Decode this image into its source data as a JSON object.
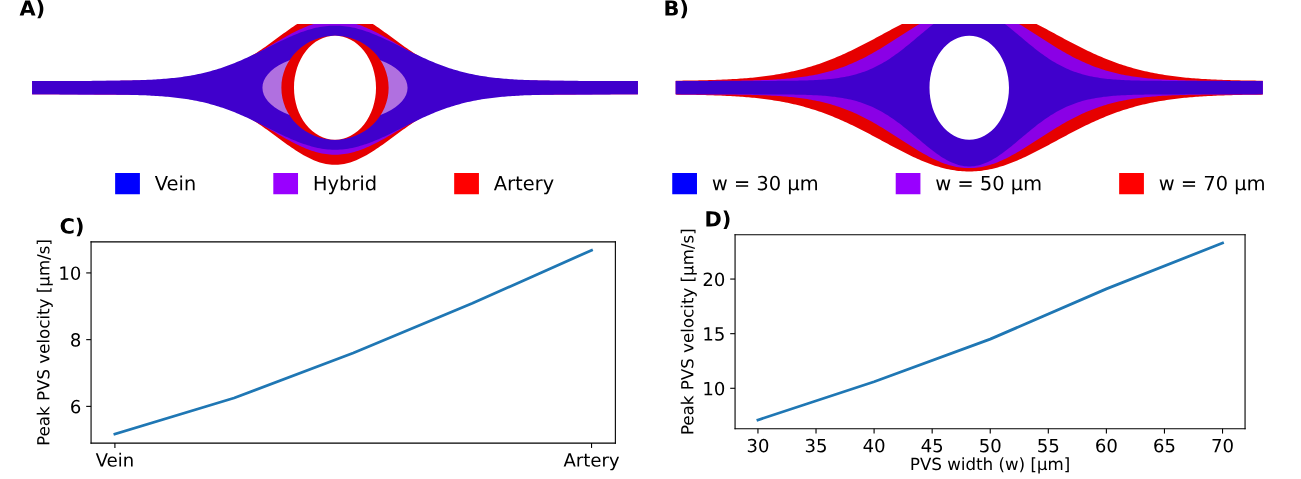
{
  "chart_data": [
    {
      "type": "other",
      "title": "A)",
      "legend": "bottom",
      "series": [
        {
          "name": "Vein",
          "color": "#0000ff"
        },
        {
          "name": "Hybrid",
          "color": "#9900ff"
        },
        {
          "name": "Artery",
          "color": "#ff0000"
        }
      ]
    },
    {
      "type": "other",
      "title": "B)",
      "legend": "bottom",
      "series": [
        {
          "name": "w = 30 µm",
          "color": "#0000ff"
        },
        {
          "name": "w = 50 µm",
          "color": "#9900ff"
        },
        {
          "name": "w = 70 µm",
          "color": "#ff0000"
        }
      ]
    },
    {
      "type": "line",
      "title": "C)",
      "ylabel": "Peak PVS velocity [μm/s]",
      "categories": [
        "Vein",
        null,
        null,
        null,
        "Artery"
      ],
      "ylim": [
        4.9,
        10.93
      ],
      "yticks": [
        6,
        8,
        10
      ],
      "grid": false,
      "legend": false,
      "series": [
        {
          "color": "#1f77b4",
          "values": [
            5.17,
            6.25,
            7.6,
            9.09,
            10.68
          ]
        }
      ]
    },
    {
      "type": "line",
      "title": "D)",
      "ylabel": "Peak PVS velocity [μm/s]",
      "xlabel": "PVS width (w) [μm]",
      "x": [
        30,
        40,
        50,
        60,
        70
      ],
      "xlim": [
        28.03,
        71.94
      ],
      "xticks": [
        30,
        35,
        40,
        45,
        50,
        55,
        60,
        65,
        70
      ],
      "ylim": [
        6.3,
        24.06
      ],
      "yticks": [
        10,
        15,
        20
      ],
      "grid": false,
      "legend": false,
      "series": [
        {
          "color": "#1f77b4",
          "values": [
            7.1,
            10.6,
            14.5,
            19.1,
            23.3
          ]
        }
      ]
    }
  ]
}
